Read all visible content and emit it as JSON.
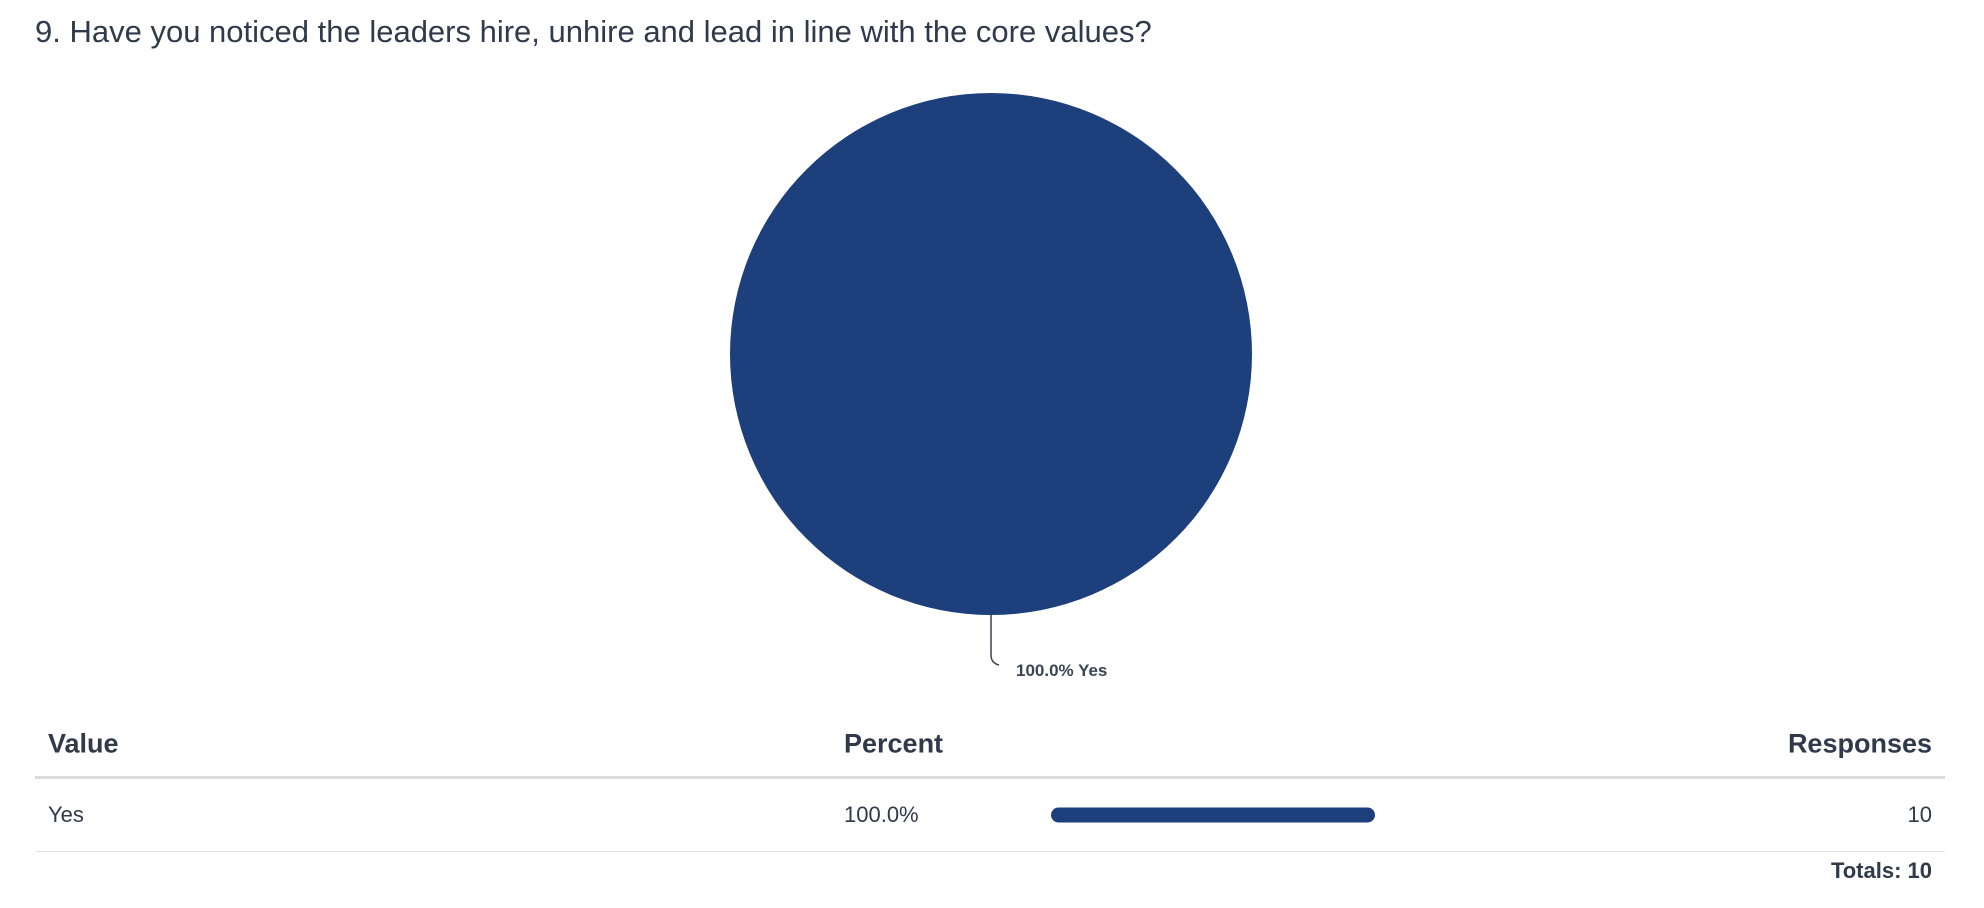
{
  "question": {
    "title": "9. Have you noticed the leaders hire, unhire and lead in line with the core values?"
  },
  "chart_data": {
    "type": "pie",
    "categories": [
      "Yes"
    ],
    "values": [
      100.0
    ],
    "slice_labels": [
      "100.0% Yes"
    ],
    "colors": [
      "#1d3f7c"
    ]
  },
  "table": {
    "headers": {
      "value": "Value",
      "percent": "Percent",
      "responses": "Responses"
    },
    "rows": [
      {
        "value": "Yes",
        "percent": "100.0%",
        "percent_fraction": 1.0,
        "responses": "10"
      }
    ],
    "totals": "Totals: 10"
  },
  "colors": {
    "accent": "#1d3f7c",
    "text": "#2f3a4a"
  }
}
